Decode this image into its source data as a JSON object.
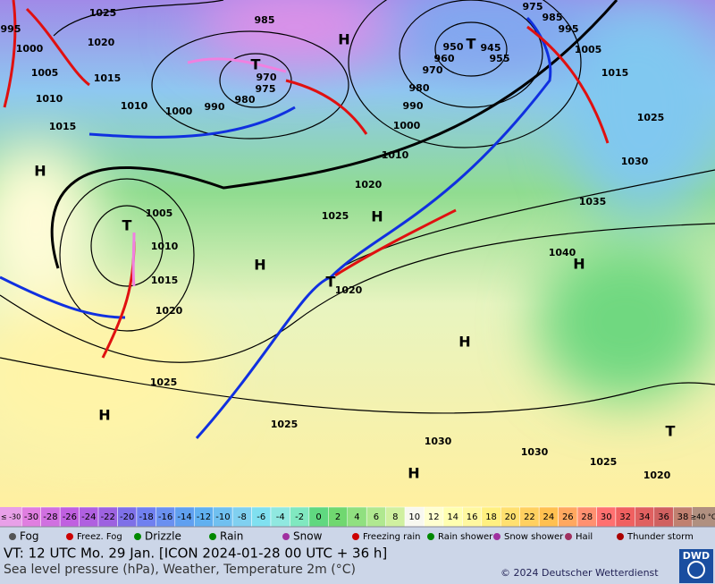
{
  "map": {
    "pressure_labels": [
      "1025",
      "1020",
      "1000",
      "1005",
      "1010",
      "1015",
      "995",
      "985",
      "970",
      "975",
      "980",
      "990",
      "1000",
      "1010",
      "1015",
      "950",
      "960",
      "945",
      "955",
      "970",
      "980",
      "990",
      "1000",
      "1010",
      "975",
      "985",
      "995",
      "1005",
      "1015",
      "1025",
      "1030",
      "1035",
      "1040",
      "1020",
      "1025",
      "1005",
      "1010",
      "1015",
      "1020",
      "1020",
      "1025",
      "1025",
      "1030",
      "1030",
      "1025",
      "1020"
    ],
    "centers": [
      "H",
      "H",
      "H",
      "H",
      "H",
      "H",
      "H",
      "H",
      "T",
      "T",
      "T",
      "T",
      "T"
    ]
  },
  "scale": {
    "low": "≤ -30",
    "high": "≥40 °C",
    "values": [
      -30,
      -28,
      -26,
      -24,
      -22,
      -20,
      -18,
      -16,
      -14,
      -12,
      -10,
      -8,
      -6,
      -4,
      -2,
      0,
      2,
      4,
      6,
      8,
      10,
      12,
      14,
      16,
      18,
      20,
      22,
      24,
      26,
      28,
      30,
      32,
      34,
      36,
      38
    ],
    "colors": [
      "#e07ee0",
      "#d070e0",
      "#c060e0",
      "#b060e0",
      "#9d62e0",
      "#7e70e8",
      "#7080f0",
      "#6a90f0",
      "#60a0f0",
      "#60b0f0",
      "#70c0f0",
      "#80d0f0",
      "#80e0f0",
      "#90e8e0",
      "#80e8c0",
      "#60d880",
      "#70d870",
      "#90e080",
      "#b0e890",
      "#d0f0a0",
      "#f8f8f0",
      "#ffffd0",
      "#ffffb0",
      "#fff8a0",
      "#fff080",
      "#ffe070",
      "#ffd060",
      "#ffc050",
      "#ffa860",
      "#ff9070",
      "#ff7070",
      "#f06060",
      "#e06060",
      "#d06060",
      "#c08070"
    ]
  },
  "legend": [
    "Fog",
    "Freez. Fog",
    "Drizzle",
    "Rain",
    "Snow",
    "Freezing rain",
    "Rain shower",
    "Snow shower",
    "Hail",
    "Thunder storm"
  ],
  "footer": {
    "line1": "VT: 12 UTC Mo.  29 Jan. [ICON 2024-01-28  00 UTC + 36 h]",
    "line2": "Sea level pressure (hPa), Weather, Temperature 2m (°C)",
    "copyright": "© 2024 Deutscher Wetterdienst",
    "logo": "DWD"
  }
}
